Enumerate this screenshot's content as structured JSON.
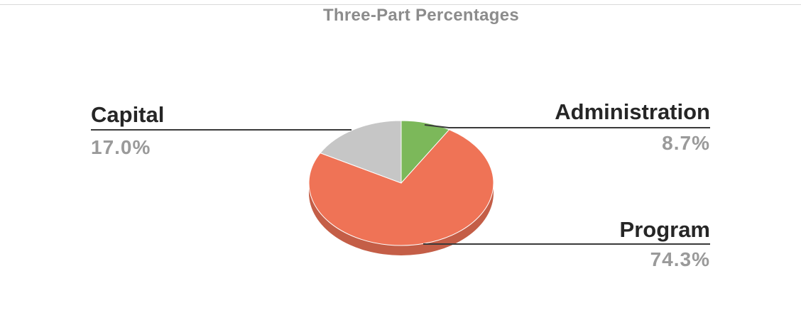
{
  "chart_data": {
    "type": "pie",
    "title": "Three-Part Percentages",
    "slices": [
      {
        "label": "Administration",
        "value": 8.7,
        "value_label": "8.7%",
        "color": "#7cb85a"
      },
      {
        "label": "Program",
        "value": 74.3,
        "value_label": "74.3%",
        "color": "#ef7356"
      },
      {
        "label": "Capital",
        "value": 17.0,
        "value_label": "17.0%",
        "color": "#c6c6c6"
      }
    ],
    "style": "3d-tilted",
    "legend": "none",
    "data_labels": "outside-with-leader-lines"
  }
}
